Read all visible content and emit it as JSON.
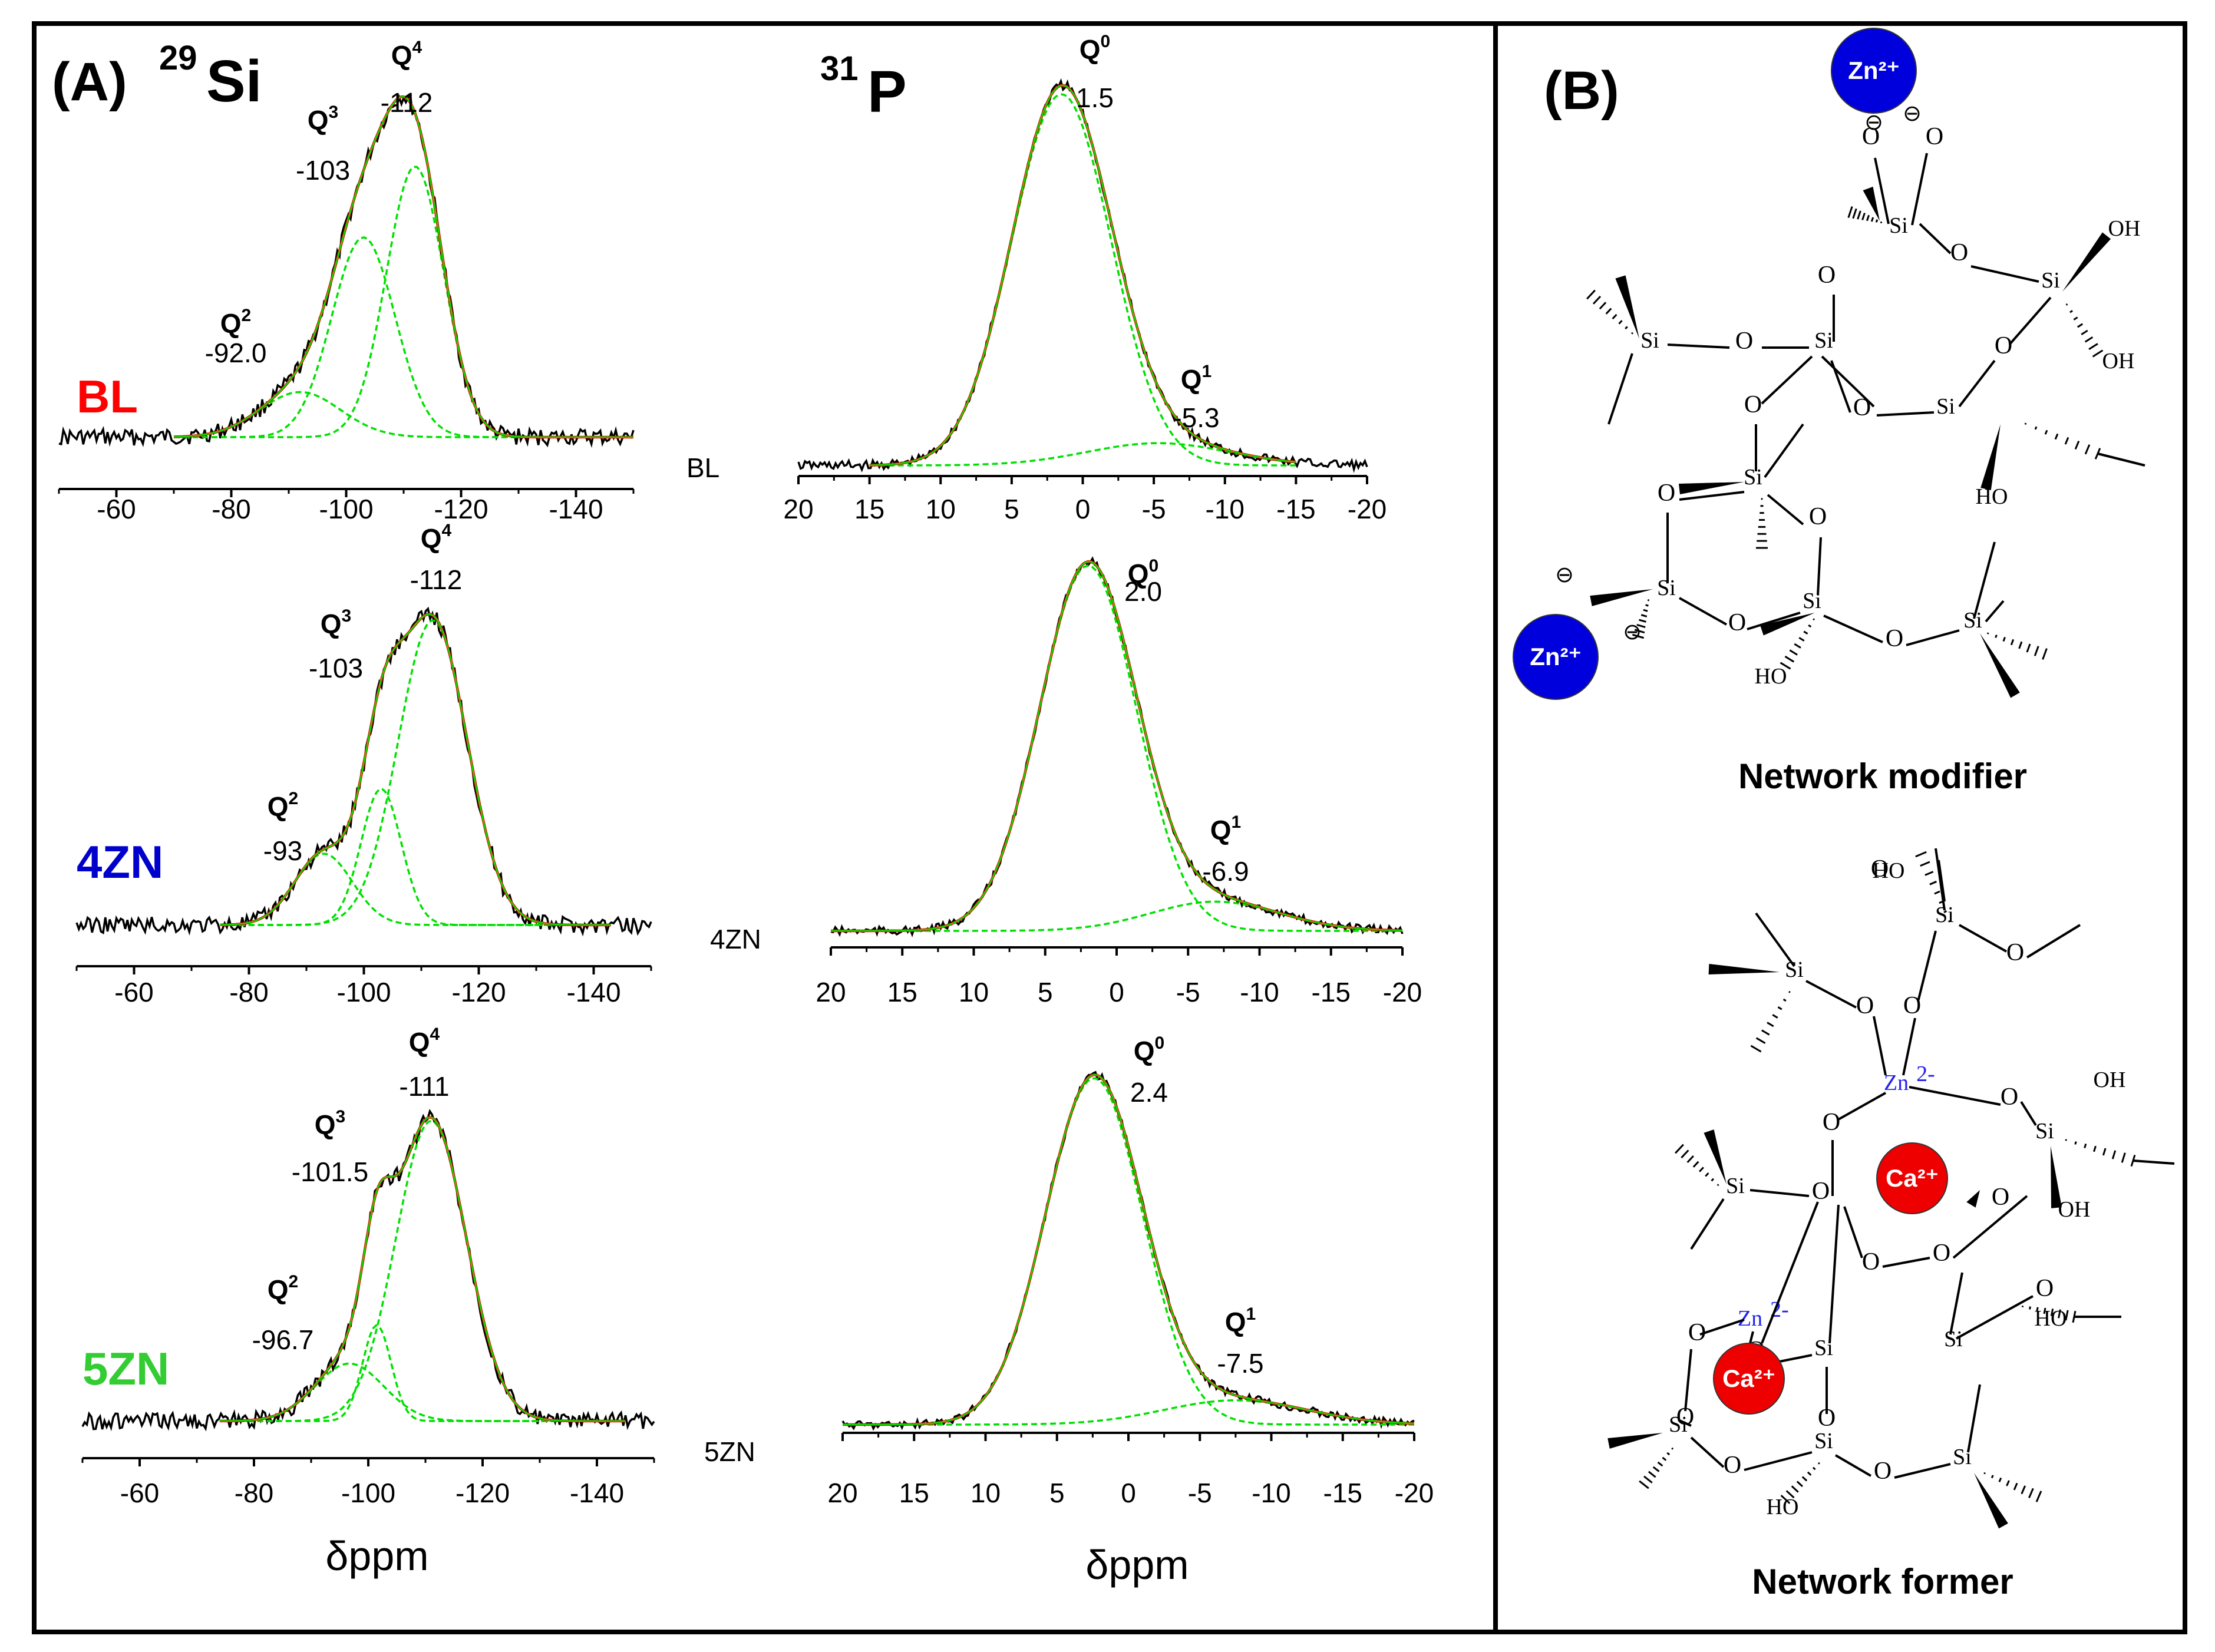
{
  "panelA": {
    "label": "(A)",
    "si_header": {
      "sup": "29",
      "base": "Si"
    },
    "p_header": {
      "sup": "31",
      "base": "P"
    },
    "xlabel": "δppm"
  },
  "panelB": {
    "label": "(B)",
    "modifier_title": "Network modifier",
    "former_title": "Network former",
    "atoms": {
      "si": "Si",
      "o": "O",
      "oh": "OH",
      "ho": "HO",
      "zn_ion": "Zn²⁺",
      "ca_ion": "Ca²⁺",
      "zn_former": "Zn",
      "zn_charge": "2-",
      "minus": "⊖"
    }
  },
  "colors": {
    "experimental": "#000000",
    "fit": "#ff0000",
    "deconvolution": "#00e000",
    "bl": "#ff0000",
    "4zn": "#0000cc",
    "5zn": "#33cc33",
    "zn_ion": "#0000dd",
    "ca_ion": "#ee0000"
  },
  "chart_data": [
    {
      "type": "line",
      "nucleus": "29Si",
      "sample": "BL",
      "sample_label": "BL",
      "xlim": [
        -50,
        -150
      ],
      "xticks": [
        "-60",
        "-80",
        "-100",
        "-120",
        "-140"
      ],
      "peaks": [
        {
          "name": "Q2",
          "center": -92.0,
          "label": "-92.0",
          "height": 0.14,
          "width": 7
        },
        {
          "name": "Q3",
          "center": -103,
          "label": "-103",
          "height": 0.62,
          "width": 5.5
        },
        {
          "name": "Q4",
          "center": -112,
          "label": "-112",
          "height": 0.84,
          "width": 5
        }
      ]
    },
    {
      "type": "line",
      "nucleus": "31P",
      "sample": "BL",
      "sample_label": "BL",
      "xlim": [
        20,
        -20
      ],
      "xticks": [
        "20",
        "15",
        "10",
        "5",
        "0",
        "-5",
        "-10",
        "-15",
        "-20"
      ],
      "peaks": [
        {
          "name": "Q0",
          "center": 1.5,
          "label": "1.5",
          "height": 1.0,
          "width": 3.5
        },
        {
          "name": "Q1",
          "center": -5.3,
          "label": "-5.3",
          "height": 0.06,
          "width": 5
        }
      ]
    },
    {
      "type": "line",
      "nucleus": "29Si",
      "sample": "4ZN",
      "sample_label": "4ZN",
      "xlim": [
        -50,
        -150
      ],
      "xticks": [
        "-60",
        "-80",
        "-100",
        "-120",
        "-140"
      ],
      "peaks": [
        {
          "name": "Q2",
          "center": -93,
          "label": "-93",
          "height": 0.22,
          "width": 5
        },
        {
          "name": "Q3",
          "center": -103,
          "label": "-103",
          "height": 0.42,
          "width": 3.5
        },
        {
          "name": "Q4",
          "center": -112,
          "label": "-112",
          "height": 0.94,
          "width": 6
        }
      ]
    },
    {
      "type": "line",
      "nucleus": "31P",
      "sample": "4ZN",
      "sample_label": "4ZN",
      "xlim": [
        20,
        -20
      ],
      "xticks": [
        "20",
        "15",
        "10",
        "5",
        "0",
        "-5",
        "-10",
        "-15",
        "-20"
      ],
      "peaks": [
        {
          "name": "Q0",
          "center": 2.0,
          "label": "2.0",
          "height": 1.0,
          "width": 3.4
        },
        {
          "name": "Q1",
          "center": -6.9,
          "label": "-6.9",
          "height": 0.08,
          "width": 4.5
        }
      ]
    },
    {
      "type": "line",
      "nucleus": "29Si",
      "sample": "5ZN",
      "sample_label": "5ZN",
      "xlim": [
        -50,
        -150
      ],
      "xticks": [
        "-60",
        "-80",
        "-100",
        "-120",
        "-140"
      ],
      "peaks": [
        {
          "name": "Q2",
          "center": -96.7,
          "label": "-96.7",
          "height": 0.18,
          "width": 6
        },
        {
          "name": "Q3",
          "center": -101.5,
          "label": "-101.5",
          "height": 0.3,
          "width": 2.5
        },
        {
          "name": "Q4",
          "center": -111,
          "label": "-111",
          "height": 0.94,
          "width": 6.2
        }
      ]
    },
    {
      "type": "line",
      "nucleus": "31P",
      "sample": "5ZN",
      "sample_label": "5ZN",
      "xlim": [
        20,
        -20
      ],
      "xticks": [
        "20",
        "15",
        "10",
        "5",
        "0",
        "-5",
        "-10",
        "-15",
        "-20"
      ],
      "peaks": [
        {
          "name": "Q0",
          "center": 2.4,
          "label": "2.4",
          "height": 1.0,
          "width": 3.4
        },
        {
          "name": "Q1",
          "center": -7.5,
          "label": "-7.5",
          "height": 0.07,
          "width": 5
        }
      ]
    }
  ]
}
